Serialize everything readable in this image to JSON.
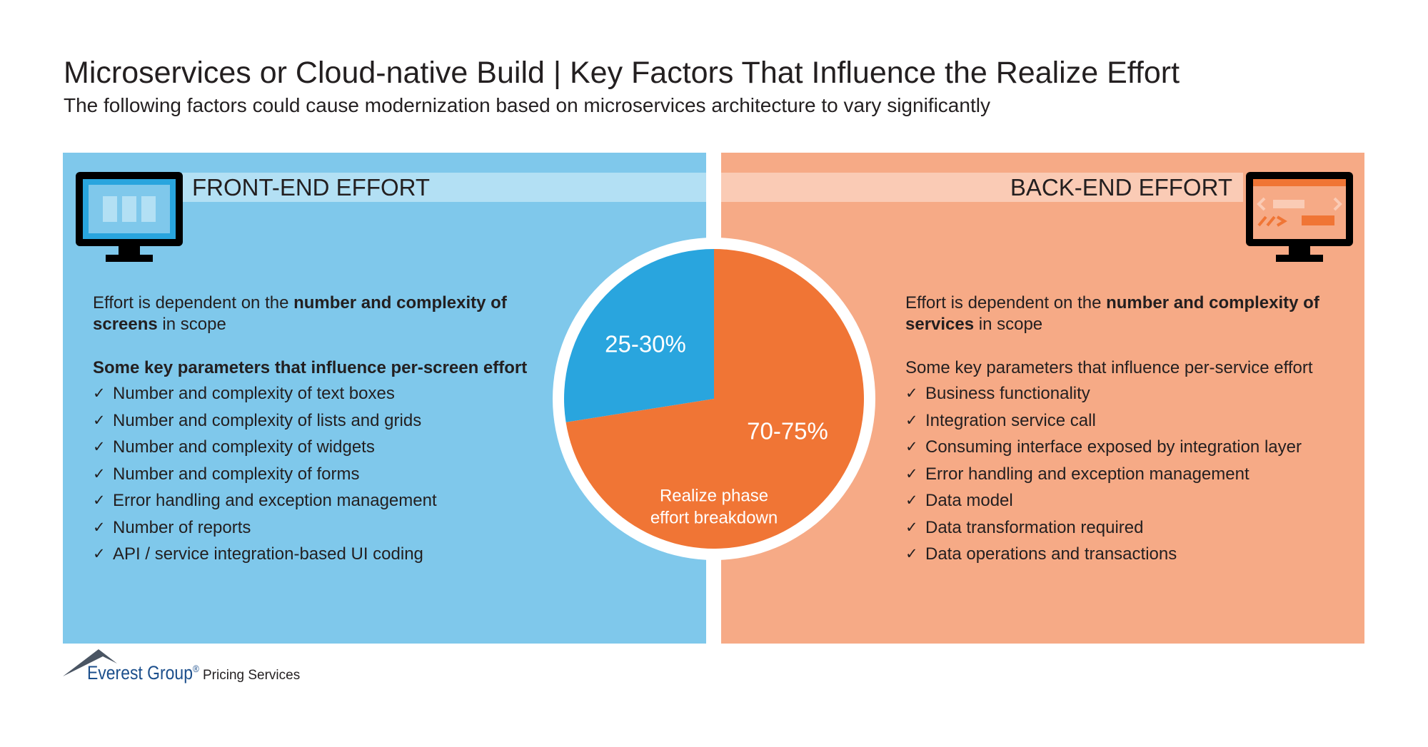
{
  "header": {
    "title": "Microservices or Cloud-native Build | Key Factors That Influence the Realize Effort",
    "subtitle": "The following factors could cause modernization based on microservices architecture to vary significantly"
  },
  "front_end": {
    "heading": "FRONT-END EFFORT",
    "intro": [
      "Effort is dependent on the ",
      "number and complexity of screens",
      " in scope"
    ],
    "params_heading": "Some key parameters that influence per-screen effort",
    "items": [
      "Number and complexity of text boxes",
      "Number and complexity of lists and grids",
      "Number and complexity of widgets",
      "Number and complexity of forms",
      "Error handling and exception management",
      "Number of reports",
      "API / service integration-based UI coding"
    ]
  },
  "back_end": {
    "heading": "BACK-END EFFORT",
    "intro": [
      "Effort is dependent on the ",
      "number and complexity of services",
      " in scope"
    ],
    "params_heading": "Some key parameters that influence per-service effort",
    "items": [
      "Business functionality",
      "Integration service call",
      "Consuming interface exposed by integration layer",
      "Error handling and exception management",
      "Data model",
      "Data transformation required",
      "Data operations and transactions"
    ]
  },
  "pie": {
    "type": "pie",
    "values": [
      27.5,
      72.5
    ],
    "value_labels": [
      "25-30%",
      "70-75%"
    ],
    "colors": [
      "#29a5de",
      "#f07535"
    ],
    "caption": [
      "Realize phase",
      "effort breakdown"
    ]
  },
  "footer": {
    "brand": "Everest Group",
    "mark": "®",
    "service": "Pricing Services"
  }
}
